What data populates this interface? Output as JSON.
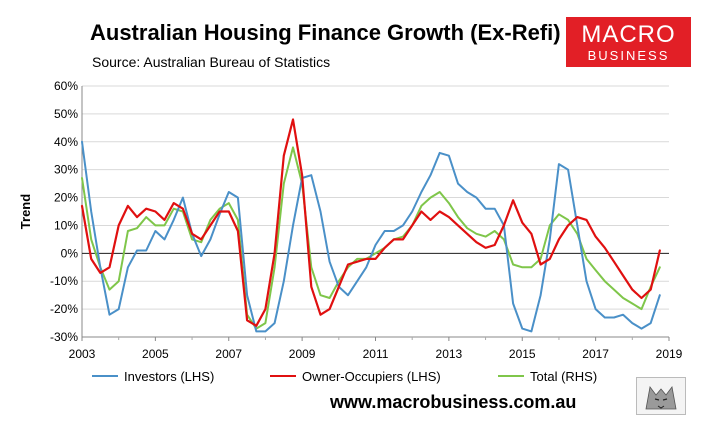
{
  "header": {
    "title": "Australian Housing Finance Growth (Ex-Refi)",
    "subtitle": "Source: Australian Bureau of Statistics"
  },
  "logo": {
    "line1": "MACRO",
    "line2": "BUSINESS"
  },
  "footer": {
    "url": "www.macrobusiness.com.au"
  },
  "chart_data": {
    "type": "line",
    "title": "Australian Housing Finance Growth (Ex-Refi)",
    "ylabel": "Trend",
    "xlim": [
      2003,
      2019
    ],
    "ylim": [
      -30,
      60
    ],
    "ytick_labels": [
      "60%",
      "50%",
      "40%",
      "30%",
      "20%",
      "10%",
      "0%",
      "-10%",
      "-20%",
      "-30%"
    ],
    "ytick_values": [
      60,
      50,
      40,
      30,
      20,
      10,
      0,
      -10,
      -20,
      -30
    ],
    "xtick_labels": [
      "2003",
      "2005",
      "2007",
      "2009",
      "2011",
      "2013",
      "2015",
      "2017",
      "2019"
    ],
    "xtick_values": [
      2003,
      2005,
      2007,
      2009,
      2011,
      2013,
      2015,
      2017,
      2019
    ],
    "grid": "horizontal",
    "legend_position": "bottom",
    "series": [
      {
        "name": "Investors (LHS)",
        "color": "#4a90c8",
        "x": [
          2003,
          2003.25,
          2003.5,
          2003.75,
          2004,
          2004.25,
          2004.5,
          2004.75,
          2005,
          2005.25,
          2005.5,
          2005.75,
          2006,
          2006.25,
          2006.5,
          2006.75,
          2007,
          2007.25,
          2007.5,
          2007.75,
          2008,
          2008.25,
          2008.5,
          2008.75,
          2009,
          2009.25,
          2009.5,
          2009.75,
          2010,
          2010.25,
          2010.5,
          2010.75,
          2011,
          2011.25,
          2011.5,
          2011.75,
          2012,
          2012.25,
          2012.5,
          2012.75,
          2013,
          2013.25,
          2013.5,
          2013.75,
          2014,
          2014.25,
          2014.5,
          2014.75,
          2015,
          2015.25,
          2015.5,
          2015.75,
          2016,
          2016.25,
          2016.5,
          2016.75,
          2017,
          2017.25,
          2017.5,
          2017.75,
          2018,
          2018.25,
          2018.5,
          2018.75
        ],
        "y": [
          40,
          15,
          -5,
          -22,
          -20,
          -5,
          1,
          1,
          8,
          5,
          12,
          20,
          7,
          -1,
          5,
          14,
          22,
          20,
          -15,
          -28,
          -28,
          -25,
          -10,
          10,
          27,
          28,
          15,
          -3,
          -12,
          -15,
          -10,
          -5,
          3,
          8,
          8,
          10,
          15,
          22,
          28,
          36,
          35,
          25,
          22,
          20,
          16,
          16,
          10,
          -18,
          -27,
          -28,
          -15,
          5,
          32,
          30,
          10,
          -10,
          -20,
          -23,
          -23,
          -22,
          -25,
          -27,
          -25,
          -15
        ]
      },
      {
        "name": "Owner-Occupiers (LHS)",
        "color": "#e01010",
        "x": [
          2003,
          2003.25,
          2003.5,
          2003.75,
          2004,
          2004.25,
          2004.5,
          2004.75,
          2005,
          2005.25,
          2005.5,
          2005.75,
          2006,
          2006.25,
          2006.5,
          2006.75,
          2007,
          2007.25,
          2007.5,
          2007.75,
          2008,
          2008.25,
          2008.5,
          2008.75,
          2009,
          2009.25,
          2009.5,
          2009.75,
          2010,
          2010.25,
          2010.5,
          2010.75,
          2011,
          2011.25,
          2011.5,
          2011.75,
          2012,
          2012.25,
          2012.5,
          2012.75,
          2013,
          2013.25,
          2013.5,
          2013.75,
          2014,
          2014.25,
          2014.5,
          2014.75,
          2015,
          2015.25,
          2015.5,
          2015.75,
          2016,
          2016.25,
          2016.5,
          2016.75,
          2017,
          2017.25,
          2017.5,
          2017.75,
          2018,
          2018.25,
          2018.5,
          2018.75
        ],
        "y": [
          17,
          -2,
          -7,
          -5,
          10,
          17,
          13,
          16,
          15,
          12,
          18,
          16,
          7,
          5,
          10,
          15,
          15,
          8,
          -24,
          -26,
          -20,
          0,
          35,
          48,
          28,
          -12,
          -22,
          -20,
          -12,
          -4,
          -3,
          -2,
          -2,
          2,
          5,
          5,
          10,
          15,
          12,
          15,
          13,
          10,
          7,
          4,
          2,
          3,
          10,
          19,
          11,
          7,
          -4,
          -2,
          5,
          10,
          13,
          12,
          6,
          2,
          -3,
          -8,
          -13,
          -16,
          -13,
          1
        ]
      },
      {
        "name": "Total (RHS)",
        "color": "#7fc64a",
        "x": [
          2003,
          2003.25,
          2003.5,
          2003.75,
          2004,
          2004.25,
          2004.5,
          2004.75,
          2005,
          2005.25,
          2005.5,
          2005.75,
          2006,
          2006.25,
          2006.5,
          2006.75,
          2007,
          2007.25,
          2007.5,
          2007.75,
          2008,
          2008.25,
          2008.5,
          2008.75,
          2009,
          2009.25,
          2009.5,
          2009.75,
          2010,
          2010.25,
          2010.5,
          2010.75,
          2011,
          2011.25,
          2011.5,
          2011.75,
          2012,
          2012.25,
          2012.5,
          2012.75,
          2013,
          2013.25,
          2013.5,
          2013.75,
          2014,
          2014.25,
          2014.5,
          2014.75,
          2015,
          2015.25,
          2015.5,
          2015.75,
          2016,
          2016.25,
          2016.5,
          2016.75,
          2017,
          2017.25,
          2017.5,
          2017.75,
          2018,
          2018.25,
          2018.5,
          2018.75
        ],
        "y": [
          27,
          5,
          -5,
          -13,
          -10,
          8,
          9,
          13,
          10,
          10,
          16,
          15,
          5,
          4,
          12,
          16,
          18,
          12,
          -22,
          -27,
          -25,
          -5,
          25,
          38,
          25,
          -5,
          -15,
          -16,
          -10,
          -5,
          -2,
          -2,
          0,
          2,
          5,
          6,
          10,
          17,
          20,
          22,
          18,
          13,
          9,
          7,
          6,
          8,
          5,
          -4,
          -5,
          -5,
          -2,
          10,
          14,
          12,
          7,
          -2,
          -6,
          -10,
          -13,
          -16,
          -18,
          -20,
          -12,
          -5
        ]
      }
    ]
  }
}
